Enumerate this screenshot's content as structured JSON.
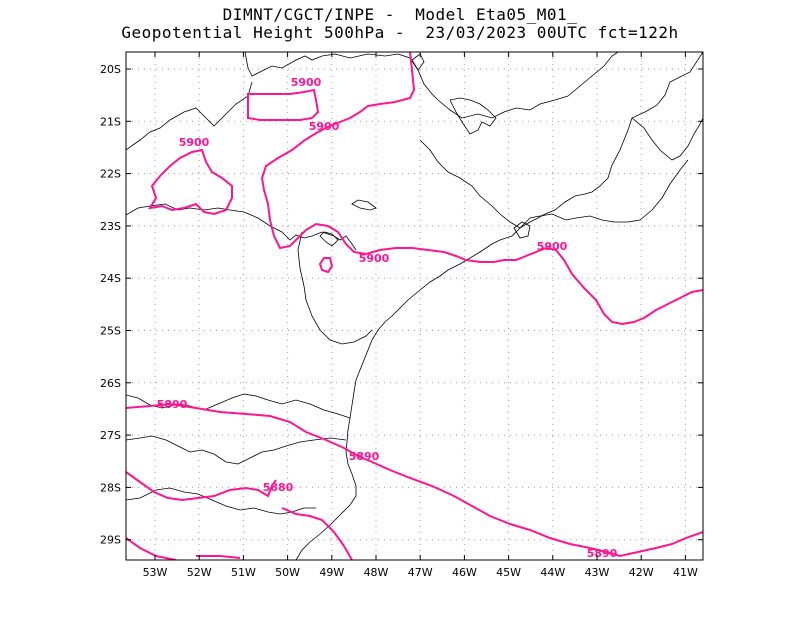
{
  "header": {
    "line1": "DIMNT/CGCT/INPE -  Model Eta05_M01_",
    "line2": "Geopotential Height 500hPa -  23/03/2023 00UTC fct=122h"
  },
  "map": {
    "lat_labels": [
      "20S",
      "21S",
      "22S",
      "23S",
      "24S",
      "25S",
      "26S",
      "27S",
      "28S",
      "29S"
    ],
    "lon_labels": [
      "53W",
      "52W",
      "51W",
      "50W",
      "49W",
      "48W",
      "47W",
      "46W",
      "45W",
      "44W",
      "43W",
      "42W",
      "41W"
    ],
    "contour_color": "#ff1493",
    "coast_color": "#000000",
    "grid_color": "#a0a0a0",
    "contour_labels": [
      "5900",
      "5900",
      "5900",
      "5900",
      "5900",
      "5890",
      "5890",
      "5890",
      "5880"
    ]
  }
}
